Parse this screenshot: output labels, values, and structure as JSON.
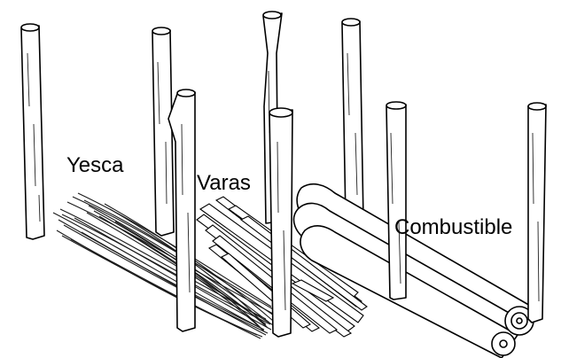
{
  "diagram": {
    "labels": {
      "tinder": "Yesca",
      "kindling": "Varas",
      "fuel": "Combustible"
    },
    "colors": {
      "ink": "#000000",
      "background": "#ffffff"
    }
  }
}
